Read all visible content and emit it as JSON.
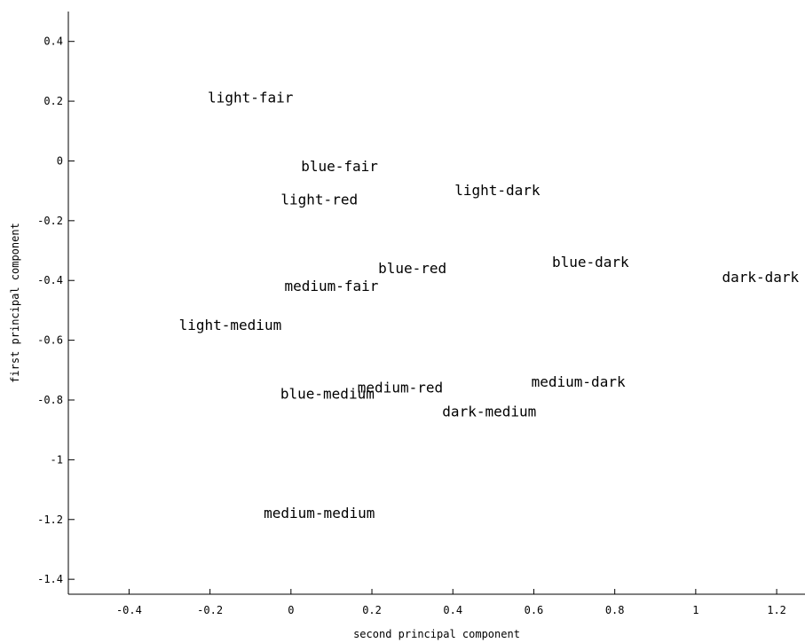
{
  "chart_data": {
    "type": "scatter",
    "title": "",
    "xlabel": "second principal component",
    "ylabel": "first principal component",
    "xlim": [
      -0.55,
      1.27
    ],
    "ylim": [
      -1.45,
      0.5
    ],
    "xticks": [
      -0.4,
      -0.2,
      0,
      0.2,
      0.4,
      0.6,
      0.8,
      1,
      1.2
    ],
    "xtick_labels": [
      "-0.4",
      "-0.2",
      "0",
      "0.2",
      "0.4",
      "0.6",
      "0.8",
      "1",
      "1.2"
    ],
    "yticks": [
      0.4,
      0.2,
      0,
      -0.2,
      -0.4,
      -0.6,
      -0.8,
      -1,
      -1.2,
      -1.4
    ],
    "ytick_labels": [
      "0.4",
      "0.2",
      "0",
      "-0.2",
      "-0.4",
      "-0.6",
      "-0.8",
      "-1",
      "-1.2",
      "-1.4"
    ],
    "grid": false,
    "marker": "text-label",
    "points": [
      {
        "label": "light-fair",
        "x": -0.1,
        "y": 0.21
      },
      {
        "label": "blue-fair",
        "x": 0.12,
        "y": -0.02
      },
      {
        "label": "light-red",
        "x": 0.07,
        "y": -0.13
      },
      {
        "label": "light-dark",
        "x": 0.51,
        "y": -0.1
      },
      {
        "label": "blue-red",
        "x": 0.3,
        "y": -0.36
      },
      {
        "label": "blue-dark",
        "x": 0.74,
        "y": -0.34
      },
      {
        "label": "dark-dark",
        "x": 1.16,
        "y": -0.39
      },
      {
        "label": "medium-fair",
        "x": 0.1,
        "y": -0.42
      },
      {
        "label": "light-medium",
        "x": -0.15,
        "y": -0.55
      },
      {
        "label": "medium-red",
        "x": 0.27,
        "y": -0.76
      },
      {
        "label": "blue-medium",
        "x": 0.09,
        "y": -0.78
      },
      {
        "label": "medium-dark",
        "x": 0.71,
        "y": -0.74
      },
      {
        "label": "dark-medium",
        "x": 0.49,
        "y": -0.84
      },
      {
        "label": "medium-medium",
        "x": 0.07,
        "y": -1.18
      }
    ]
  }
}
